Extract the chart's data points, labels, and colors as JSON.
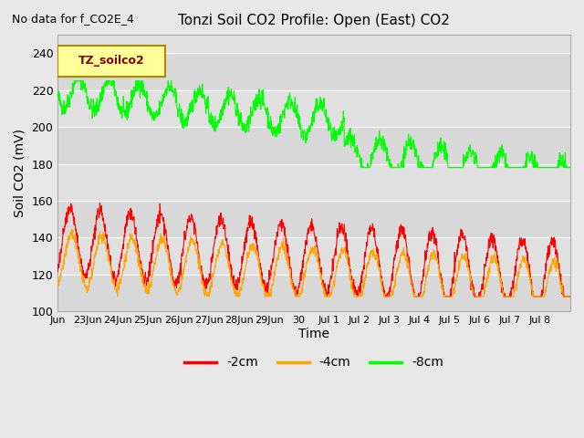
{
  "title": "Tonzi Soil CO2 Profile: Open (East) CO2",
  "subtitle": "No data for f_CO2E_4",
  "ylabel": "Soil CO2 (mV)",
  "xlabel": "Time",
  "legend_label": "TZ_soilco2",
  "ylim": [
    100,
    250
  ],
  "yticks": [
    100,
    120,
    140,
    160,
    180,
    200,
    220,
    240
  ],
  "line_2cm_color": "#ff0000",
  "line_4cm_color": "#ffa500",
  "line_8cm_color": "#00ff00",
  "legend_box_facecolor": "#ffff99",
  "legend_box_edgecolor": "#aa8800",
  "legend_text_color": "#880000",
  "tick_labels": [
    "Jun",
    "23Jun",
    "24Jun",
    "25Jun",
    "26Jun",
    "27Jun",
    "28Jun",
    "29Jun",
    "30",
    "Jul 1",
    "Jul 2",
    "Jul 3",
    "Jul 4",
    "Jul 5",
    "Jul 6",
    "Jul 7",
    "Jul 8"
  ],
  "band_colors": [
    "#d8d8d8",
    "#e0e0e0",
    "#d8d8d8",
    "#e0e0e0",
    "#d8d8d8",
    "#e0e0e0",
    "#d8d8d8",
    "#e0e0e0"
  ],
  "bg_color": "#e8e8e8",
  "grid_color": "#ffffff",
  "seed": 42
}
